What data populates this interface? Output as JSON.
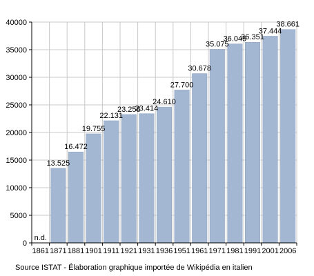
{
  "chart_data": {
    "type": "bar",
    "categories": [
      "1861",
      "1871",
      "1881",
      "1901",
      "1911",
      "1921",
      "1931",
      "1936",
      "1951",
      "1961",
      "1971",
      "1981",
      "1991",
      "2001",
      "2006"
    ],
    "values": [
      null,
      13525,
      16472,
      19755,
      22131,
      23258,
      23414,
      24610,
      27700,
      30678,
      35075,
      36049,
      36351,
      37444,
      38661
    ],
    "value_labels": [
      "n.d.",
      "13.525",
      "16.472",
      "19.755",
      "22.131",
      "23.258",
      "23.414",
      "24.610",
      "27.700",
      "30.678",
      "35.075",
      "36.049",
      "36.351",
      "37.444",
      "38.661"
    ],
    "yticks": [
      0,
      5000,
      10000,
      15000,
      20000,
      25000,
      30000,
      35000,
      40000
    ],
    "ylim": [
      0,
      40000
    ],
    "grid": true,
    "legend": false,
    "title": "",
    "xlabel": "",
    "ylabel": "",
    "colors": {
      "bar": "#a4b7d2",
      "bar_edge": "#8ea2bf",
      "grid": "#c8c8c8",
      "axis": "#000000"
    }
  },
  "source_note": "Source ISTAT - Élaboration graphique importée de Wikipédia en italien"
}
